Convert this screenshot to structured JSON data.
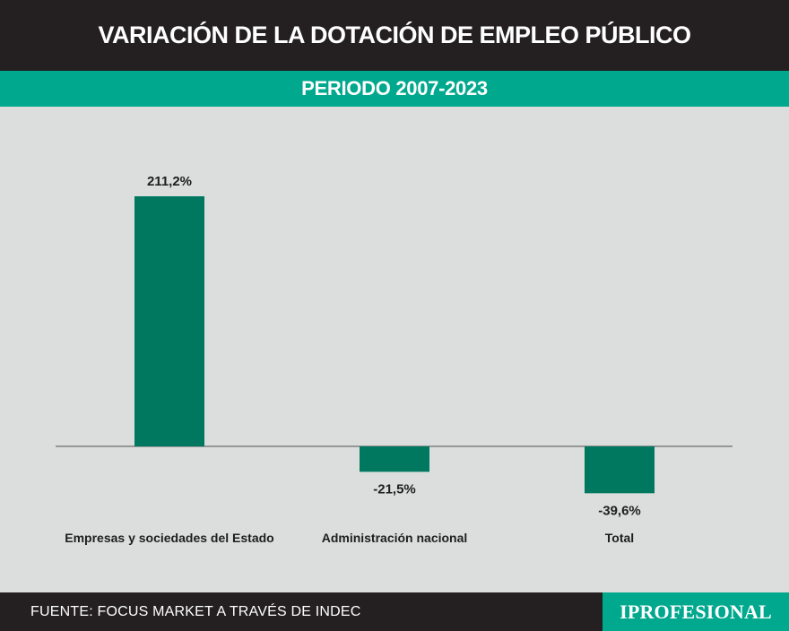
{
  "header": {
    "title": "VARIACIÓN DE LA DOTACIÓN DE EMPLEO PÚBLICO",
    "subtitle": "PERIODO 2007-2023"
  },
  "footer": {
    "source": "FUENTE: FOCUS MARKET A TRAVÉS DE INDEC",
    "logo": "IPROFESIONAL"
  },
  "colors": {
    "bar": "#00775f",
    "accent": "#00a88e",
    "dark": "#242021",
    "background": "#dcdedd"
  },
  "chart_data": {
    "type": "bar",
    "title": "VARIACIÓN DE LA DOTACIÓN DE EMPLEO PÚBLICO",
    "subtitle": "PERIODO 2007-2023",
    "categories": [
      "Empresas y sociedades del Estado",
      "Administración nacional",
      "Total"
    ],
    "values": [
      211.2,
      -21.5,
      -39.6
    ],
    "value_labels": [
      "211,2%",
      "-21,5%",
      "-39,6%"
    ],
    "unit": "%",
    "grid": false,
    "legend": "none",
    "baseline": 0
  }
}
